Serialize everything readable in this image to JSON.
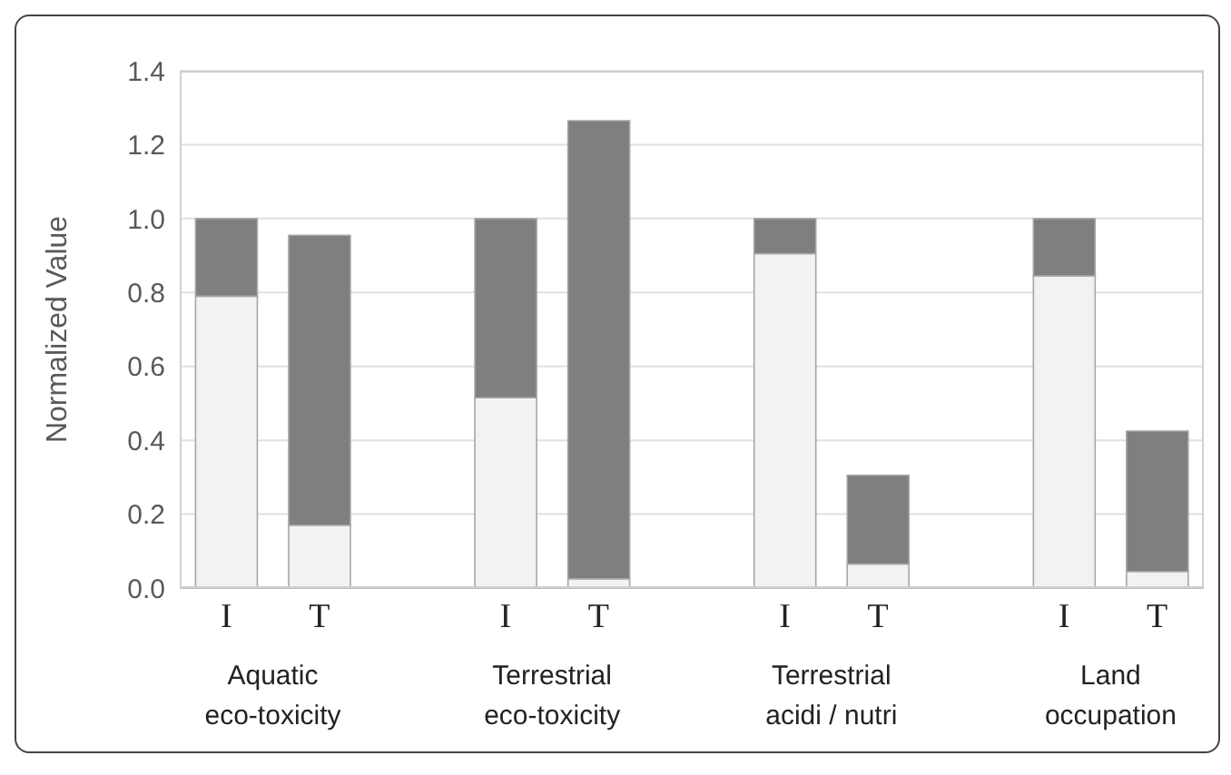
{
  "chart_data": {
    "type": "bar",
    "stacked": true,
    "ylabel": "Normalized Value",
    "categories": [
      "I",
      "T",
      null,
      "I",
      "T",
      null,
      "I",
      "T",
      null,
      "I",
      "T"
    ],
    "series": [
      {
        "color": "#f2f2f2",
        "values": [
          0.79,
          0.17,
          null,
          0.515,
          0.025,
          null,
          0.905,
          0.065,
          null,
          0.845,
          0.045
        ]
      },
      {
        "color": "#7f7f7f",
        "values": [
          0.21,
          0.785,
          null,
          0.485,
          1.24,
          null,
          0.095,
          0.24,
          null,
          0.155,
          0.38
        ]
      }
    ],
    "ylim": [
      0,
      1.4
    ],
    "yticks": [
      {
        "value": 0,
        "label": "0.0"
      },
      0.2,
      0.4,
      0.6,
      0.8,
      {
        "value": 1,
        "label": "1.0"
      },
      1.2,
      1.4
    ],
    "grid": "y",
    "legend": false,
    "annotations": [
      "Aquatic eco-toxicity",
      "Terrestrial eco-toxicity",
      "Terrestrial acidi / nutri",
      "Land occupation"
    ]
  }
}
